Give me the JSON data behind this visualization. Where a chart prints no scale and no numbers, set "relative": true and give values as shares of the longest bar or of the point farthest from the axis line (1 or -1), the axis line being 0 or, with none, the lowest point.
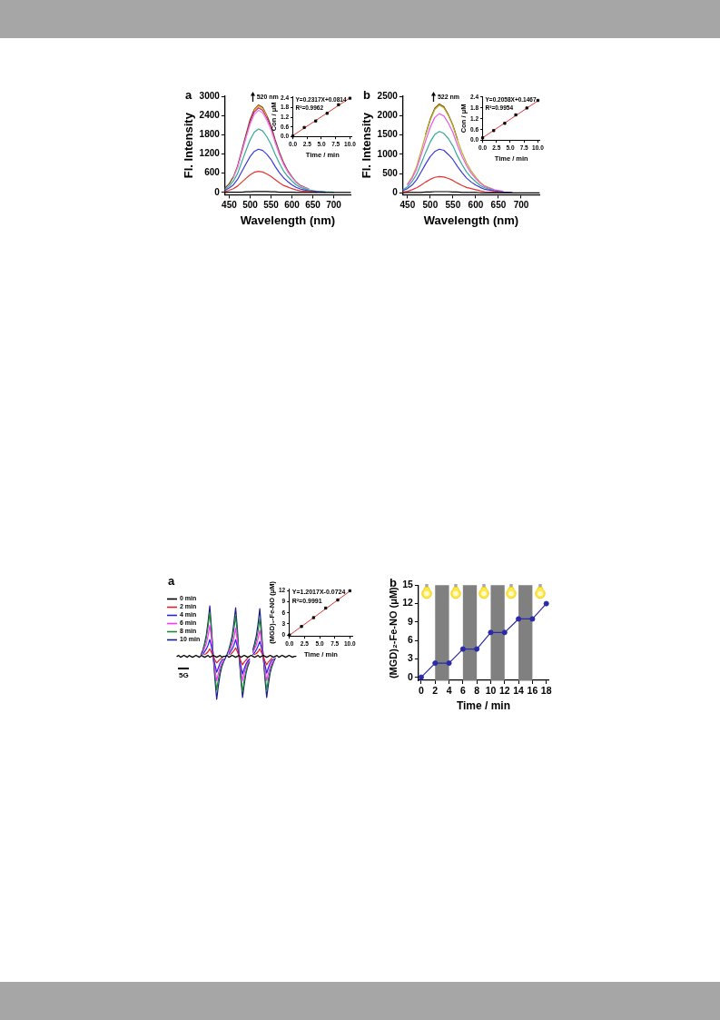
{
  "chart_data": [
    {
      "type": "line",
      "xlabel": "Wavelength (nm)",
      "ylabel": "Fl. Intensity",
      "annotations": [
        "a",
        "520 nm"
      ],
      "marker": "none",
      "xlim": [
        440,
        740
      ],
      "xticks": [
        450,
        500,
        550,
        600,
        650,
        700
      ],
      "ylim": [
        -70,
        3000
      ],
      "yticks": [
        0,
        600,
        1200,
        1800,
        2400,
        3000
      ],
      "x": [
        440,
        450,
        460,
        470,
        480,
        490,
        500,
        510,
        520,
        530,
        540,
        550,
        560,
        570,
        580,
        590,
        600,
        610,
        620,
        640,
        660,
        680,
        700,
        720,
        740
      ],
      "series": [
        {
          "color": "#000000",
          "values": [
            0,
            10,
            10,
            10,
            10,
            20,
            20,
            30,
            30,
            30,
            30,
            20,
            20,
            10,
            10,
            10,
            10,
            0,
            0,
            0,
            0,
            0,
            0,
            0,
            0
          ]
        },
        {
          "color": "#e3342f",
          "values": [
            30,
            70,
            120,
            200,
            320,
            440,
            550,
            630,
            660,
            640,
            580,
            500,
            400,
            300,
            220,
            170,
            120,
            80,
            50,
            30,
            10,
            null,
            null,
            null,
            null
          ]
        },
        {
          "color": "#3b3bd4",
          "values": [
            70,
            140,
            240,
            410,
            650,
            890,
            1120,
            1280,
            1350,
            1310,
            1190,
            1030,
            810,
            620,
            460,
            340,
            240,
            160,
            110,
            50,
            30,
            10,
            null,
            null,
            null
          ]
        },
        {
          "color": "#35a89a",
          "values": [
            100,
            200,
            360,
            590,
            950,
            1310,
            1640,
            1880,
            1980,
            1920,
            1740,
            1500,
            1190,
            910,
            670,
            500,
            360,
            240,
            160,
            80,
            40,
            20,
            10,
            null,
            null
          ]
        },
        {
          "color": "#e58ae8",
          "values": [
            null,
            null,
            460,
            770,
            1230,
            1690,
            2120,
            2430,
            2560,
            2480,
            2250,
            1950,
            1540,
            1180,
            870,
            640,
            460,
            310,
            200,
            100,
            null,
            null,
            null,
            null,
            null
          ]
        },
        {
          "color": "#d0258f",
          "values": [
            null,
            null,
            null,
            790,
            1270,
            1740,
            2190,
            2510,
            2640,
            2560,
            2320,
            2010,
            1580,
            1210,
            900,
            660,
            480,
            null,
            null,
            null,
            null,
            null,
            null,
            null,
            null
          ]
        },
        {
          "color": "#d8c41c",
          "values": [
            null,
            null,
            null,
            null,
            null,
            null,
            null,
            2560,
            2690,
            2610,
            2370,
            null,
            null,
            null,
            null,
            null,
            null,
            null,
            null,
            null,
            null,
            null,
            null,
            null,
            null
          ]
        },
        {
          "color": "#7b3f12",
          "values": [
            140,
            270,
            490,
            820,
            1310,
            1800,
            2270,
            2590,
            2730,
            2650,
            2400,
            2080,
            1640,
            1260,
            930,
            680,
            490,
            330,
            220,
            110,
            null,
            null,
            null,
            null,
            null
          ]
        }
      ]
    },
    {
      "type": "scatter",
      "xlabel": "Time / min",
      "ylabel": "Con / μM",
      "annotations": [
        "Y=0.2317X+0.0814",
        "R²=0.9962"
      ],
      "marker": "square",
      "xlim": [
        0,
        10.4
      ],
      "xticks": [
        {
          "value": 0,
          "label": "0.0"
        },
        2.5,
        {
          "value": 5,
          "label": "5.0"
        },
        7.5,
        {
          "value": 10,
          "label": "10.0"
        }
      ],
      "ylim": [
        0,
        2.5
      ],
      "yticks": [
        {
          "value": 0,
          "label": "0.0"
        },
        0.6,
        1.2,
        1.8,
        2.4
      ],
      "series": [
        {
          "color": "#000000",
          "x": [
            0,
            2,
            4,
            6,
            8,
            10
          ],
          "values": [
            0.05,
            0.58,
            0.98,
            1.45,
            1.98,
            2.38
          ]
        },
        {
          "type": "line",
          "marker": "none",
          "color": "#e3342f",
          "x": [
            0,
            10
          ],
          "values": [
            0.08,
            2.4
          ]
        }
      ]
    },
    {
      "type": "line",
      "xlabel": "Wavelength (nm)",
      "ylabel": "Fl. Intensity",
      "annotations": [
        "b",
        "522 nm"
      ],
      "marker": "none",
      "xlim": [
        440,
        740
      ],
      "xticks": [
        450,
        500,
        550,
        600,
        650,
        700
      ],
      "ylim": [
        -50,
        2500
      ],
      "yticks": [
        0,
        500,
        1000,
        1500,
        2000,
        2500
      ],
      "x": [
        440,
        450,
        460,
        470,
        480,
        490,
        500,
        510,
        520,
        530,
        540,
        550,
        560,
        570,
        580,
        590,
        600,
        610,
        620,
        640,
        660,
        680,
        700,
        720,
        740
      ],
      "series": [
        {
          "color": "#000000",
          "values": [
            0,
            10,
            10,
            10,
            10,
            20,
            20,
            30,
            30,
            30,
            30,
            20,
            20,
            10,
            10,
            10,
            10,
            0,
            0,
            0,
            0,
            0,
            0,
            0,
            0
          ]
        },
        {
          "color": "#e3342f",
          "values": [
            20,
            40,
            80,
            130,
            200,
            280,
            350,
            400,
            420,
            410,
            370,
            320,
            250,
            190,
            140,
            110,
            80,
            50,
            30,
            20,
            10,
            null,
            null,
            null,
            null
          ]
        },
        {
          "color": "#3b3bd4",
          "values": [
            60,
            110,
            200,
            340,
            540,
            750,
            940,
            1070,
            1130,
            1100,
            990,
            860,
            680,
            520,
            380,
            280,
            200,
            140,
            90,
            50,
            20,
            10,
            null,
            null,
            null
          ]
        },
        {
          "color": "#35a89a",
          "values": [
            80,
            160,
            290,
            480,
            760,
            1050,
            1320,
            1510,
            1590,
            1540,
            1400,
            1210,
            950,
            730,
            540,
            400,
            290,
            190,
            130,
            60,
            30,
            null,
            null,
            null,
            null
          ]
        },
        {
          "color": "#ee55ee",
          "values": [
            null,
            210,
            370,
            620,
            980,
            1350,
            1700,
            1950,
            2050,
            1990,
            1800,
            1560,
            1230,
            940,
            700,
            510,
            370,
            250,
            160,
            80,
            40,
            null,
            null,
            null,
            null
          ]
        },
        {
          "color": "#b8b020",
          "values": [
            null,
            230,
            410,
            680,
            1090,
            1500,
            1880,
            2160,
            2270,
            2200,
            2000,
            1730,
            1360,
            1040,
            770,
            570,
            410,
            270,
            180,
            90,
            null,
            null,
            null,
            null,
            null
          ]
        },
        {
          "color": "#7b3f12",
          "values": [
            null,
            null,
            null,
            null,
            null,
            1520,
            1910,
            2190,
            2300,
            2230,
            2020,
            1750,
            1380,
            null,
            null,
            null,
            null,
            null,
            null,
            null,
            null,
            null,
            null,
            null,
            null
          ]
        }
      ]
    },
    {
      "type": "scatter",
      "xlabel": "Time / min",
      "ylabel": "Con / μM",
      "annotations": [
        "Y=0.2058X+0.1467",
        "R²=0.9954"
      ],
      "marker": "square",
      "xlim": [
        0,
        10.4
      ],
      "xticks": [
        {
          "value": 0,
          "label": "0.0"
        },
        2.5,
        {
          "value": 5,
          "label": "5.0"
        },
        7.5,
        {
          "value": 10,
          "label": "10.0"
        }
      ],
      "ylim": [
        0,
        2.45
      ],
      "yticks": [
        {
          "value": 0,
          "label": "0.0"
        },
        0.6,
        1.2,
        1.8,
        2.4
      ],
      "series": [
        {
          "color": "#000000",
          "x": [
            0,
            2,
            4,
            6,
            8,
            10
          ],
          "values": [
            0.15,
            0.55,
            0.95,
            1.42,
            1.8,
            2.22
          ]
        },
        {
          "type": "line",
          "marker": "none",
          "color": "#e3342f",
          "x": [
            0,
            10
          ],
          "values": [
            0.15,
            2.2
          ]
        }
      ]
    },
    {
      "type": "line",
      "relative": true,
      "legend": "top left",
      "annotations": [
        "a",
        "5G"
      ],
      "marker": "none",
      "categories": [
        null,
        null,
        null,
        null,
        null,
        null,
        null,
        null,
        null,
        null,
        null,
        null,
        null,
        null,
        null,
        null,
        null,
        null,
        null,
        null,
        null,
        null,
        null,
        null,
        null,
        null,
        null,
        null,
        null,
        null,
        null,
        null,
        null,
        null,
        null,
        null,
        null,
        null,
        null,
        null,
        null,
        null,
        null,
        null,
        null,
        null,
        null,
        null,
        null,
        null,
        null,
        null,
        null,
        null,
        null,
        null,
        null,
        null,
        null,
        null,
        null,
        null,
        null,
        null,
        null,
        null,
        null,
        null,
        null,
        null
      ],
      "series": [
        {
          "name": "0 min",
          "color": "#000000",
          "values": [
            0.46,
            0.47,
            0.45,
            0.46,
            0.47,
            0.46,
            0.45,
            0.47,
            0.46,
            0.45,
            0.46,
            0.47,
            0.46,
            0.45,
            0.47,
            0.46,
            0.45,
            0.46,
            0.47,
            0.45,
            0.46,
            0.47,
            0.46,
            0.45,
            0.46,
            0.47,
            0.45,
            0.46,
            0.46,
            0.47,
            0.45,
            0.46,
            0.47,
            0.46,
            0.45,
            0.46,
            0.47,
            0.45,
            0.46,
            0.47,
            0.46,
            0.45,
            0.46,
            0.47,
            0.46,
            0.45,
            0.46,
            0.47,
            0.45,
            0.46,
            0.47,
            0.46,
            0.45,
            0.46,
            0.47,
            0.46,
            0.45,
            0.46,
            0.47,
            0.45,
            0.46,
            0.47,
            0.46,
            0.45,
            0.46,
            0.47,
            0.46,
            0.45,
            0.46,
            0.46
          ]
        },
        {
          "name": "2 min",
          "color": "#e02020",
          "values": [
            null,
            null,
            null,
            null,
            null,
            null,
            null,
            null,
            null,
            null,
            null,
            null,
            null,
            null,
            null,
            null,
            0.48,
            0.49,
            0.51,
            0.54,
            0.5,
            0.46,
            0.42,
            0.39,
            0.41,
            0.43,
            0.44,
            null,
            null,
            null,
            null,
            0.48,
            0.5,
            0.52,
            0.55,
            0.51,
            0.46,
            0.41,
            0.37,
            0.4,
            0.42,
            0.44,
            null,
            null,
            null,
            0.48,
            0.49,
            0.51,
            0.54,
            0.5,
            0.46,
            0.41,
            0.37,
            0.4,
            0.42,
            0.44,
            null,
            null,
            null,
            null,
            null,
            null,
            null,
            null,
            null,
            null,
            null,
            null,
            null,
            null
          ]
        },
        {
          "name": "4 min",
          "color": "#2525e0",
          "values": [
            null,
            null,
            null,
            null,
            null,
            null,
            null,
            null,
            null,
            null,
            null,
            null,
            null,
            null,
            null,
            0.48,
            0.51,
            0.54,
            0.58,
            0.64,
            0.56,
            0.46,
            0.37,
            0.29,
            0.34,
            0.39,
            0.42,
            0.43,
            null,
            null,
            0.48,
            0.51,
            0.54,
            0.58,
            0.64,
            0.56,
            0.46,
            0.36,
            0.27,
            0.33,
            0.38,
            0.41,
            0.43,
            null,
            0.48,
            0.5,
            0.53,
            0.57,
            0.62,
            0.55,
            0.46,
            0.37,
            0.28,
            0.34,
            0.39,
            0.42,
            0.43,
            null,
            null,
            null,
            null,
            null,
            null,
            null,
            null,
            null,
            null,
            null,
            null,
            null
          ]
        },
        {
          "name": "6 min",
          "color": "#ff33ff",
          "values": [
            null,
            null,
            null,
            null,
            null,
            null,
            null,
            null,
            null,
            null,
            null,
            null,
            null,
            null,
            null,
            0.5,
            0.55,
            0.6,
            0.68,
            0.79,
            0.64,
            0.46,
            0.32,
            0.2,
            0.28,
            0.35,
            0.39,
            0.42,
            null,
            null,
            0.5,
            0.54,
            0.59,
            0.66,
            0.76,
            0.62,
            0.46,
            0.32,
            0.2,
            0.28,
            0.35,
            0.39,
            0.42,
            null,
            0.5,
            0.54,
            0.58,
            0.65,
            0.74,
            0.61,
            0.46,
            0.32,
            0.2,
            0.28,
            0.35,
            0.39,
            0.42,
            null,
            null,
            null,
            null,
            null,
            null,
            null,
            null,
            null,
            null,
            null,
            null,
            null
          ]
        },
        {
          "name": "8 min",
          "color": "#1e8c2e",
          "values": [
            null,
            null,
            null,
            null,
            null,
            null,
            null,
            null,
            null,
            null,
            null,
            null,
            null,
            null,
            null,
            0.52,
            0.58,
            0.66,
            0.78,
            0.93,
            0.72,
            0.46,
            0.26,
            0.1,
            0.22,
            0.31,
            0.37,
            0.41,
            null,
            null,
            0.52,
            0.57,
            0.64,
            0.75,
            0.89,
            0.7,
            0.46,
            0.25,
            0.08,
            0.21,
            0.3,
            0.37,
            0.41,
            null,
            0.51,
            0.56,
            0.63,
            0.73,
            0.86,
            0.68,
            0.46,
            0.26,
            0.1,
            0.22,
            0.31,
            0.37,
            0.41,
            null,
            null,
            null,
            null,
            null,
            null,
            null,
            null,
            null,
            null,
            null,
            null,
            null
          ]
        },
        {
          "name": "10 min",
          "color": "#1c1c8c",
          "values": [
            null,
            null,
            null,
            null,
            null,
            null,
            null,
            null,
            null,
            null,
            null,
            null,
            null,
            null,
            0.48,
            0.53,
            0.6,
            0.69,
            0.83,
            1.0,
            0.76,
            0.46,
            0.21,
            0.0,
            0.15,
            0.27,
            0.35,
            0.4,
            0.44,
            0.48,
            0.53,
            0.6,
            0.68,
            0.82,
            0.98,
            0.75,
            0.46,
            0.22,
            0.02,
            0.16,
            0.28,
            0.35,
            0.4,
            null,
            0.53,
            0.6,
            0.68,
            0.81,
            0.97,
            0.74,
            0.46,
            0.22,
            0.02,
            0.16,
            0.28,
            0.35,
            0.4,
            0.44,
            null,
            null,
            null,
            null,
            null,
            null,
            null,
            null,
            null,
            null,
            null,
            null
          ]
        }
      ]
    },
    {
      "type": "scatter",
      "xlabel": "Time / min",
      "ylabel": "(MGD)₂-Fe-NO (μM)",
      "annotations": [
        "Y=1.2017X-0.0724",
        "R²=0.9991"
      ],
      "marker": "square",
      "xlim": [
        0,
        10.4
      ],
      "xticks": [
        {
          "value": 0,
          "label": "0.0"
        },
        2.5,
        {
          "value": 5,
          "label": "5.0"
        },
        7.5,
        {
          "value": 10,
          "label": "10.0"
        }
      ],
      "ylim": [
        -0.4,
        12.6
      ],
      "yticks": [
        0,
        3,
        6,
        9,
        12
      ],
      "series": [
        {
          "color": "#000000",
          "x": [
            0,
            2,
            4,
            6,
            8,
            10
          ],
          "values": [
            0,
            2.3,
            4.7,
            7.3,
            9.5,
            12
          ]
        },
        {
          "type": "line",
          "marker": "none",
          "color": "#e3342f",
          "x": [
            0,
            10
          ],
          "values": [
            -0.1,
            11.9
          ]
        }
      ]
    },
    {
      "type": "line",
      "xlabel": "Time / min",
      "ylabel": "(MGD)₂-Fe-NO (μM)",
      "annotations": [
        "b"
      ],
      "marker": "circle",
      "color": "#2a2aaa",
      "xlim": [
        -0.4,
        18.3
      ],
      "xticks": [
        0,
        2,
        4,
        6,
        8,
        10,
        12,
        14,
        16,
        18
      ],
      "ylim": [
        -0.5,
        15
      ],
      "yticks": [
        0,
        3,
        6,
        9,
        12,
        15
      ],
      "x": [
        0,
        2,
        4,
        6,
        8,
        10,
        12,
        14,
        16,
        18
      ],
      "values": [
        0,
        2.3,
        2.3,
        4.6,
        4.6,
        7.3,
        7.3,
        9.5,
        9.5,
        12
      ],
      "bands": [
        {
          "axis": "x",
          "from": 2,
          "to": 4,
          "color": "#808080"
        },
        {
          "axis": "x",
          "from": 6,
          "to": 8,
          "color": "#808080"
        },
        {
          "axis": "x",
          "from": 10,
          "to": 12,
          "color": "#808080"
        },
        {
          "axis": "x",
          "from": 14,
          "to": 16,
          "color": "#808080"
        }
      ]
    }
  ]
}
